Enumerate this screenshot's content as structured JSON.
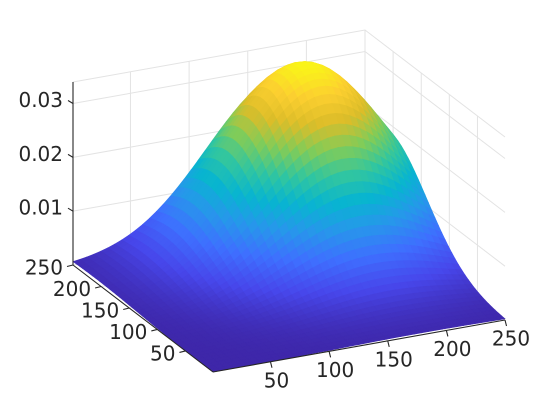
{
  "chart_data": {
    "type": "surface",
    "title": "",
    "xlabel": "",
    "ylabel": "",
    "zlabel": "",
    "x_range": [
      1,
      250
    ],
    "y_range": [
      1,
      250
    ],
    "z_range": [
      0,
      0.034
    ],
    "x_ticks": [
      50,
      100,
      150,
      200,
      250
    ],
    "y_ticks": [
      50,
      100,
      150,
      200,
      250
    ],
    "z_ticks": [
      0.01,
      0.02,
      0.03
    ],
    "x_tick_labels": [
      "50",
      "100",
      "150",
      "200",
      "250"
    ],
    "y_tick_labels": [
      "50",
      "100",
      "150",
      "200",
      "250"
    ],
    "z_tick_labels": [
      "0.01",
      "0.02",
      "0.03"
    ],
    "surface": {
      "shape": "2-D Gaussian bump",
      "peak": {
        "x": 180,
        "y": 210,
        "z": 0.0335
      },
      "spread": {
        "sigma_x": 65,
        "sigma_y": 70
      },
      "baseline_z": 0.0
    },
    "grid": true,
    "box": "partial",
    "colormap": "parula"
  }
}
